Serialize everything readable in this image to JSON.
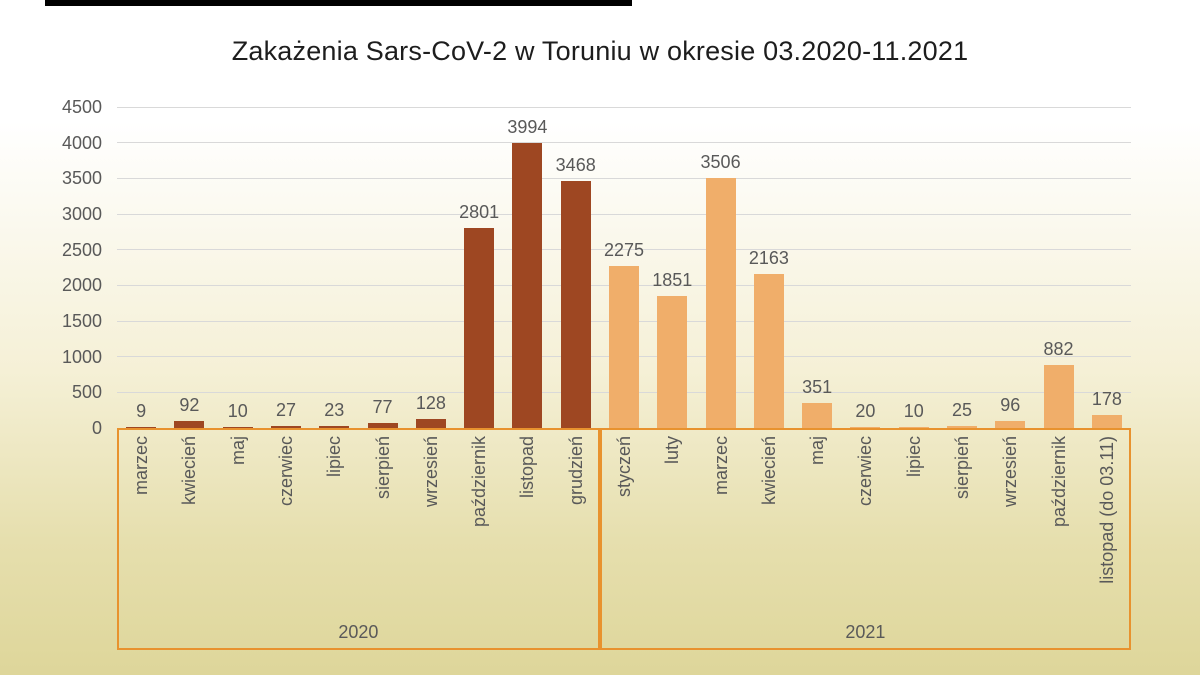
{
  "title": "Zakażenia Sars-CoV-2 w Toruniu w okresie 03.2020-11.2021",
  "colors": {
    "bar_2020": "#9e4722",
    "bar_2021": "#f0ae6a",
    "box_border": "#e8922e",
    "gridline": "#d9d9d9",
    "label_text": "#595959",
    "title_text": "#1d1d1d"
  },
  "chart_data": {
    "type": "bar",
    "title": "Zakażenia Sars-CoV-2 w Toruniu w okresie 03.2020-11.2021",
    "ylim": [
      0,
      4500
    ],
    "yticks": [
      0,
      500,
      1000,
      1500,
      2000,
      2500,
      3000,
      3500,
      4000,
      4500
    ],
    "grid": true,
    "legend": false,
    "groups": [
      {
        "year": "2020",
        "color": "#9e4722",
        "categories": [
          "marzec",
          "kwiecień",
          "maj",
          "czerwiec",
          "lipiec",
          "sierpień",
          "wrzesień",
          "październik",
          "listopad",
          "grudzień"
        ],
        "values": [
          9,
          92,
          10,
          27,
          23,
          77,
          128,
          2801,
          3994,
          3468
        ]
      },
      {
        "year": "2021",
        "color": "#f0ae6a",
        "categories": [
          "styczeń",
          "luty",
          "marzec",
          "kwiecień",
          "maj",
          "czerwiec",
          "lipiec",
          "sierpień",
          "wrzesień",
          "październik",
          "listopad (do 03.11)"
        ],
        "values": [
          2275,
          1851,
          3506,
          2163,
          351,
          20,
          10,
          25,
          96,
          882,
          178
        ]
      }
    ]
  }
}
